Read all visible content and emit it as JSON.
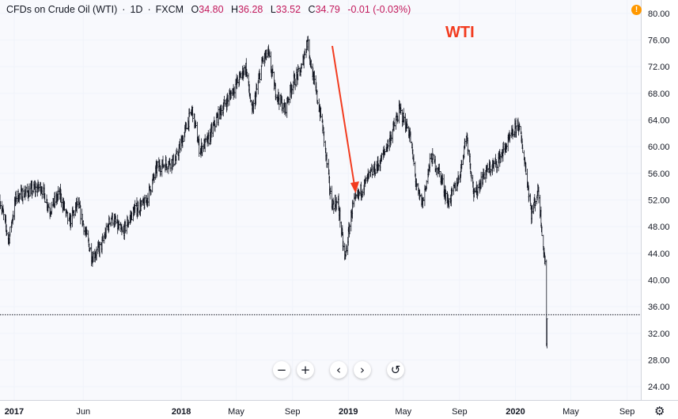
{
  "header": {
    "title": "CFDs on Crude Oil (WTI)",
    "interval": "1D",
    "source": "FXCM",
    "open_label": "O",
    "open": "34.80",
    "high_label": "H",
    "high": "36.28",
    "low_label": "L",
    "low": "33.52",
    "close_label": "C",
    "close": "34.79",
    "change": "-0.01 (-0.03%)",
    "alert_icon": "exclamation-icon",
    "alert_glyph": "!"
  },
  "annotation": {
    "text": "WTI"
  },
  "controls": {
    "zoom_out": "−",
    "zoom_in": "+",
    "scroll_left": "‹",
    "scroll_right": "›",
    "reset": "↺",
    "settings": "⚙"
  },
  "colors": {
    "series": "#131722",
    "annotation": "#f23b1f",
    "grid": "#f0f3fa",
    "axis_text": "#131722",
    "alert": "#ff9800"
  },
  "chart_data": {
    "type": "ohlc",
    "title": "CFDs on Crude Oil (WTI)",
    "ylim": [
      22,
      82
    ],
    "y_ticks": [
      24,
      28,
      32,
      36,
      40,
      44,
      48,
      52,
      56,
      60,
      64,
      68,
      72,
      76,
      80
    ],
    "y_tick_labels": [
      "24.00",
      "28.00",
      "32.00",
      "36.00",
      "40.00",
      "44.00",
      "48.00",
      "52.00",
      "56.00",
      "60.00",
      "64.00",
      "68.00",
      "72.00",
      "76.00",
      "80.00"
    ],
    "x_range": [
      "2016-12-01",
      "2020-10-01"
    ],
    "x_ticks": [
      {
        "date": "2017-01-01",
        "label": "2017",
        "bold": true
      },
      {
        "date": "2017-06-01",
        "label": "Jun",
        "bold": false
      },
      {
        "date": "2018-01-01",
        "label": "2018",
        "bold": true
      },
      {
        "date": "2018-05-01",
        "label": "May",
        "bold": false
      },
      {
        "date": "2018-09-01",
        "label": "Sep",
        "bold": false
      },
      {
        "date": "2019-01-01",
        "label": "2019",
        "bold": true
      },
      {
        "date": "2019-05-01",
        "label": "May",
        "bold": false
      },
      {
        "date": "2019-09-01",
        "label": "Sep",
        "bold": false
      },
      {
        "date": "2020-01-01",
        "label": "2020",
        "bold": true
      },
      {
        "date": "2020-05-01",
        "label": "May",
        "bold": false
      },
      {
        "date": "2020-09-01",
        "label": "Sep",
        "bold": false
      }
    ],
    "last_price_line": 34.79,
    "price_path": [
      [
        "2016-12-01",
        52.0
      ],
      [
        "2016-12-20",
        46.0
      ],
      [
        "2017-01-05",
        52.5
      ],
      [
        "2017-02-10",
        53.5
      ],
      [
        "2017-03-01",
        54.0
      ],
      [
        "2017-03-20",
        50.5
      ],
      [
        "2017-04-10",
        53.0
      ],
      [
        "2017-05-01",
        48.5
      ],
      [
        "2017-05-20",
        51.5
      ],
      [
        "2017-06-20",
        43.5
      ],
      [
        "2017-07-10",
        45.0
      ],
      [
        "2017-08-01",
        49.5
      ],
      [
        "2017-08-25",
        47.0
      ],
      [
        "2017-09-20",
        50.5
      ],
      [
        "2017-10-15",
        51.5
      ],
      [
        "2017-11-10",
        57.0
      ],
      [
        "2017-12-01",
        57.5
      ],
      [
        "2017-12-20",
        58.0
      ],
      [
        "2018-01-10",
        62.5
      ],
      [
        "2018-01-25",
        65.5
      ],
      [
        "2018-02-10",
        59.5
      ],
      [
        "2018-03-01",
        61.0
      ],
      [
        "2018-03-25",
        65.0
      ],
      [
        "2018-04-20",
        68.0
      ],
      [
        "2018-05-10",
        70.5
      ],
      [
        "2018-05-22",
        72.0
      ],
      [
        "2018-06-05",
        65.0
      ],
      [
        "2018-06-28",
        73.0
      ],
      [
        "2018-07-10",
        74.0
      ],
      [
        "2018-07-25",
        68.5
      ],
      [
        "2018-08-15",
        65.5
      ],
      [
        "2018-09-01",
        69.5
      ],
      [
        "2018-09-20",
        71.5
      ],
      [
        "2018-10-03",
        76.0
      ],
      [
        "2018-10-20",
        69.0
      ],
      [
        "2018-11-05",
        63.5
      ],
      [
        "2018-11-25",
        51.5
      ],
      [
        "2018-12-10",
        51.5
      ],
      [
        "2018-12-24",
        43.0
      ],
      [
        "2019-01-10",
        51.0
      ],
      [
        "2019-01-25",
        53.0
      ],
      [
        "2019-02-15",
        55.5
      ],
      [
        "2019-03-10",
        57.5
      ],
      [
        "2019-04-01",
        61.0
      ],
      [
        "2019-04-23",
        65.5
      ],
      [
        "2019-05-15",
        62.0
      ],
      [
        "2019-06-01",
        53.0
      ],
      [
        "2019-06-12",
        51.5
      ],
      [
        "2019-07-01",
        58.5
      ],
      [
        "2019-07-20",
        56.0
      ],
      [
        "2019-08-07",
        51.5
      ],
      [
        "2019-09-01",
        55.5
      ],
      [
        "2019-09-16",
        62.0
      ],
      [
        "2019-10-03",
        52.5
      ],
      [
        "2019-10-25",
        56.0
      ],
      [
        "2019-11-20",
        57.5
      ],
      [
        "2019-12-15",
        60.5
      ],
      [
        "2020-01-07",
        63.5
      ],
      [
        "2020-01-20",
        58.5
      ],
      [
        "2020-02-05",
        50.0
      ],
      [
        "2020-02-20",
        53.5
      ],
      [
        "2020-03-01",
        46.0
      ],
      [
        "2020-03-06",
        42.0
      ],
      [
        "2020-03-09",
        31.0
      ],
      [
        "2020-03-10",
        34.5
      ]
    ]
  }
}
